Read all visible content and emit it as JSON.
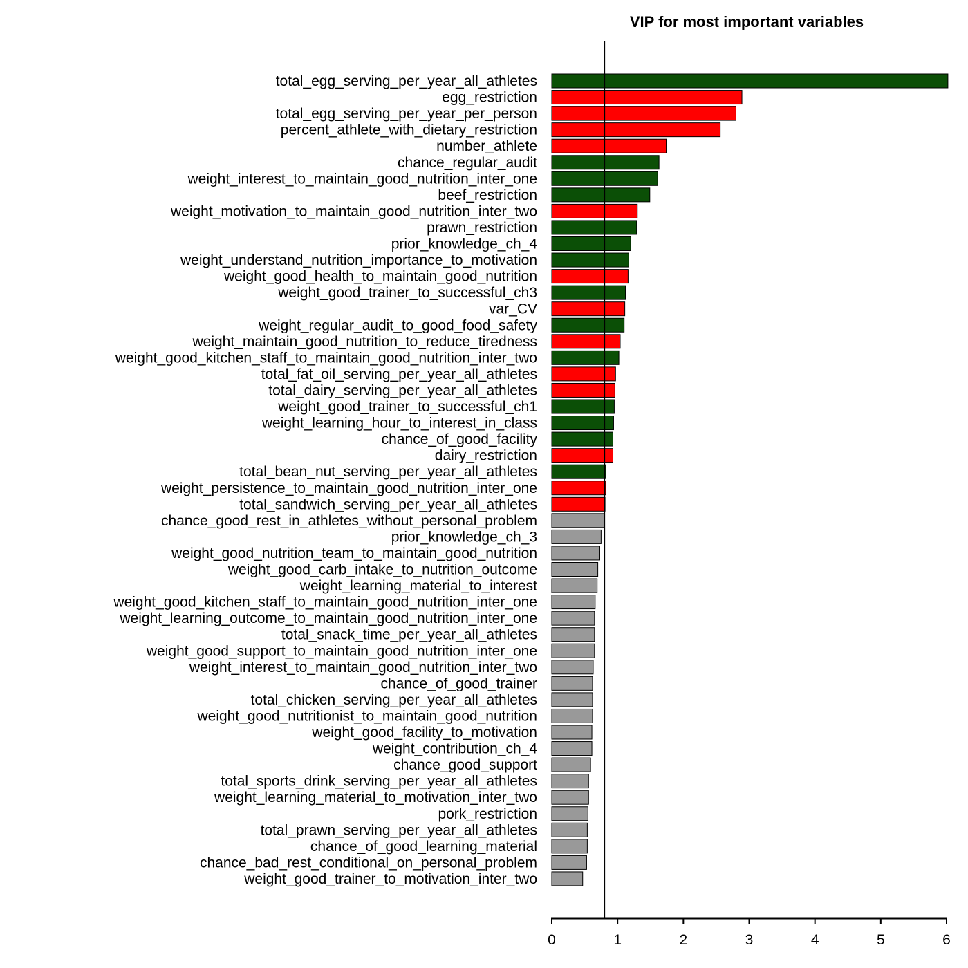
{
  "chart_data": {
    "type": "bar",
    "orientation": "horizontal",
    "title": "VIP for most important variables",
    "xlabel": "",
    "ylabel": "",
    "xlim": [
      0,
      6
    ],
    "xticks": [
      0,
      1,
      2,
      3,
      4,
      5,
      6
    ],
    "threshold": 0.8,
    "colors": {
      "positive": "#0b4f06",
      "negative": "#ff0000",
      "below_threshold": "#999999"
    },
    "categories": [
      "total_egg_serving_per_year_all_athletes",
      "egg_restriction",
      "total_egg_serving_per_year_per_person",
      "percent_athlete_with_dietary_restriction",
      "number_athlete",
      "chance_regular_audit",
      "weight_interest_to_maintain_good_nutrition_inter_one",
      "beef_restriction",
      "weight_motivation_to_maintain_good_nutrition_inter_two",
      "prawn_restriction",
      "prior_knowledge_ch_4",
      "weight_understand_nutrition_importance_to_motivation",
      "weight_good_health_to_maintain_good_nutrition",
      "weight_good_trainer_to_successful_ch3",
      "var_CV",
      "weight_regular_audit_to_good_food_safety",
      "weight_maintain_good_nutrition_to_reduce_tiredness",
      "weight_good_kitchen_staff_to_maintain_good_nutrition_inter_two",
      "total_fat_oil_serving_per_year_all_athletes",
      "total_dairy_serving_per_year_all_athletes",
      "weight_good_trainer_to_successful_ch1",
      "weight_learning_hour_to_interest_in_class",
      "chance_of_good_facility",
      "dairy_restriction",
      "total_bean_nut_serving_per_year_all_athletes",
      "weight_persistence_to_maintain_good_nutrition_inter_one",
      "total_sandwich_serving_per_year_all_athletes",
      "chance_good_rest_in_athletes_without_personal_problem",
      "prior_knowledge_ch_3",
      "weight_good_nutrition_team_to_maintain_good_nutrition",
      "weight_good_carb_intake_to_nutrition_outcome",
      "weight_learning_material_to_interest",
      "weight_good_kitchen_staff_to_maintain_good_nutrition_inter_one",
      "weight_learning_outcome_to_maintain_good_nutrition_inter_one",
      "total_snack_time_per_year_all_athletes",
      "weight_good_support_to_maintain_good_nutrition_inter_one",
      "weight_interest_to_maintain_good_nutrition_inter_two",
      "chance_of_good_trainer",
      "total_chicken_serving_per_year_all_athletes",
      "weight_good_nutritionist_to_maintain_good_nutrition",
      "weight_good_facility_to_motivation",
      "weight_contribution_ch_4",
      "chance_good_support",
      "total_sports_drink_serving_per_year_all_athletes",
      "weight_learning_material_to_motivation_inter_two",
      "pork_restriction",
      "total_prawn_serving_per_year_all_athletes",
      "chance_of_good_learning_material",
      "chance_bad_rest_conditional_on_personal_problem",
      "weight_good_trainer_to_motivation_inter_two"
    ],
    "values": [
      6.02,
      2.89,
      2.8,
      2.56,
      1.74,
      1.63,
      1.61,
      1.49,
      1.3,
      1.29,
      1.2,
      1.17,
      1.16,
      1.12,
      1.11,
      1.1,
      1.04,
      1.02,
      0.97,
      0.96,
      0.95,
      0.94,
      0.93,
      0.93,
      0.82,
      0.82,
      0.81,
      0.8,
      0.75,
      0.73,
      0.7,
      0.69,
      0.66,
      0.65,
      0.65,
      0.65,
      0.63,
      0.62,
      0.62,
      0.62,
      0.61,
      0.61,
      0.59,
      0.56,
      0.56,
      0.55,
      0.54,
      0.54,
      0.53,
      0.47
    ],
    "color_groups": [
      "positive",
      "negative",
      "negative",
      "negative",
      "negative",
      "positive",
      "positive",
      "positive",
      "negative",
      "positive",
      "positive",
      "positive",
      "negative",
      "positive",
      "negative",
      "positive",
      "negative",
      "positive",
      "negative",
      "negative",
      "positive",
      "positive",
      "positive",
      "negative",
      "positive",
      "negative",
      "negative",
      "below_threshold",
      "below_threshold",
      "below_threshold",
      "below_threshold",
      "below_threshold",
      "below_threshold",
      "below_threshold",
      "below_threshold",
      "below_threshold",
      "below_threshold",
      "below_threshold",
      "below_threshold",
      "below_threshold",
      "below_threshold",
      "below_threshold",
      "below_threshold",
      "below_threshold",
      "below_threshold",
      "below_threshold",
      "below_threshold",
      "below_threshold",
      "below_threshold",
      "below_threshold"
    ]
  }
}
